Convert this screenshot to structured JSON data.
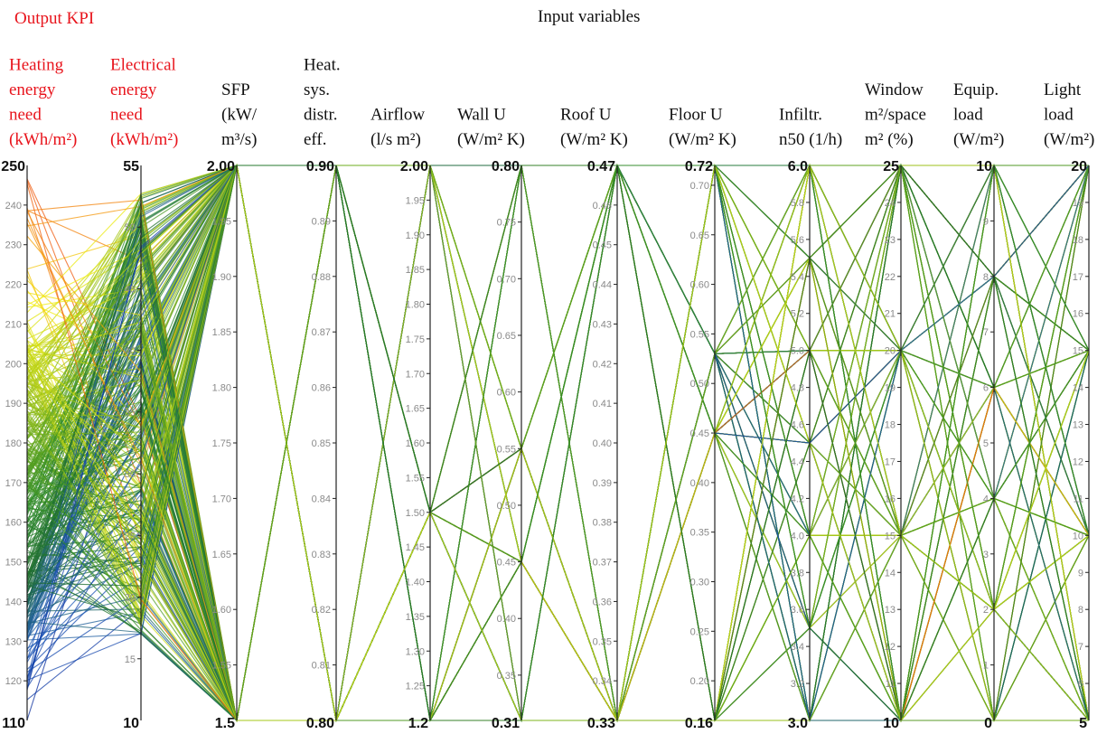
{
  "header": {
    "output_label": "Output KPI",
    "input_label": "Input variables"
  },
  "colors": {
    "output_text": "#e8141c",
    "input_text": "#111111",
    "axis": "#222222",
    "tick_text": "#8a8a8a",
    "bound_text": "#111111",
    "scale": [
      "#0b2f9e",
      "#1f5bb8",
      "#1f6e2e",
      "#2e8b2b",
      "#6aaa1c",
      "#b6cf18",
      "#f2ee10",
      "#f5a20a",
      "#ee4a10"
    ]
  },
  "chart_data": {
    "type": "parallel_coordinates",
    "color_by": "Heating energy need",
    "axes": [
      {
        "name": "Heating energy need (kWh/m²)",
        "lines": [
          "Heating",
          "energy",
          "need",
          "(kWh/m²)"
        ],
        "group": "output",
        "min": 110,
        "max": 250,
        "ticks": [
          "120",
          "130",
          "140",
          "150",
          "160",
          "170",
          "180",
          "190",
          "200",
          "210",
          "220",
          "230",
          "240"
        ],
        "bottom": "110",
        "top": "250"
      },
      {
        "name": "Electrical energy need (kWh/m²)",
        "lines": [
          "Electrical",
          "energy",
          "need",
          "(kWh/m²)"
        ],
        "group": "output",
        "min": 10,
        "max": 55,
        "ticks": [
          "15",
          "20",
          "25",
          "30",
          "35",
          "40",
          "45",
          "50"
        ],
        "bottom": "10",
        "top": "55"
      },
      {
        "name": "SFP (kW/m³/s)",
        "lines": [
          "SFP",
          "(kW/",
          "m³/s)"
        ],
        "group": "input",
        "min": 1.5,
        "max": 2.0,
        "ticks": [
          "1.55",
          "1.60",
          "1.65",
          "1.70",
          "1.75",
          "1.80",
          "1.85",
          "1.90",
          "1.95"
        ],
        "bottom": "1.5",
        "top": "2.00",
        "levels": [
          1.5,
          2.0
        ]
      },
      {
        "name": "Heat. sys. distr. eff.",
        "lines": [
          "Heat.",
          "sys.",
          "distr.",
          "eff."
        ],
        "group": "input",
        "min": 0.8,
        "max": 0.9,
        "ticks": [
          "0.81",
          "0.82",
          "0.83",
          "0.84",
          "0.85",
          "0.86",
          "0.87",
          "0.88",
          "0.89"
        ],
        "bottom": "0.80",
        "top": "0.90",
        "levels": [
          0.8,
          0.9
        ]
      },
      {
        "name": "Airflow (l/s m²)",
        "lines": [
          "Airflow",
          "(l/s m²)"
        ],
        "group": "input",
        "min": 1.2,
        "max": 2.0,
        "ticks": [
          "1.25",
          "1.30",
          "1.35",
          "1.40",
          "1.45",
          "1.50",
          "1.55",
          "1.60",
          "1.65",
          "1.70",
          "1.75",
          "1.80",
          "1.85",
          "1.90",
          "1.95"
        ],
        "bottom": "1.2",
        "top": "2.00",
        "levels": [
          1.2,
          1.5,
          2.0
        ]
      },
      {
        "name": "Wall U (W/m² K)",
        "lines": [
          "Wall U",
          "(W/m² K)"
        ],
        "group": "input",
        "min": 0.31,
        "max": 0.8,
        "ticks": [
          "0.35",
          "0.40",
          "0.45",
          "0.50",
          "0.55",
          "0.60",
          "0.65",
          "0.70",
          "0.75"
        ],
        "bottom": "0.31",
        "top": "0.80",
        "levels": [
          0.31,
          0.45,
          0.55,
          0.8
        ]
      },
      {
        "name": "Roof U (W/m² K)",
        "lines": [
          "Roof U",
          "(W/m² K)"
        ],
        "group": "input",
        "min": 0.33,
        "max": 0.47,
        "ticks": [
          "0.34",
          "0.35",
          "0.36",
          "0.37",
          "0.38",
          "0.39",
          "0.40",
          "0.41",
          "0.42",
          "0.43",
          "0.44",
          "0.45",
          "0.46"
        ],
        "bottom": "0.33",
        "top": "0.47",
        "levels": [
          0.33,
          0.47
        ]
      },
      {
        "name": "Floor U (W/m² K)",
        "lines": [
          "Floor U",
          "(W/m² K)"
        ],
        "group": "input",
        "min": 0.16,
        "max": 0.72,
        "ticks": [
          "0.20",
          "0.25",
          "0.30",
          "0.35",
          "0.40",
          "0.45",
          "0.50",
          "0.55",
          "0.60",
          "0.65",
          "0.70"
        ],
        "bottom": "0.16",
        "top": "0.72",
        "levels": [
          0.16,
          0.45,
          0.53,
          0.72
        ]
      },
      {
        "name": "Infiltr. n50 (1/h)",
        "lines": [
          "Infiltr.",
          "n50 (1/h)"
        ],
        "group": "input",
        "min": 3.0,
        "max": 6.0,
        "ticks": [
          "3.2",
          "3.4",
          "3.6",
          "3.8",
          "4.0",
          "4.2",
          "4.4",
          "4.6",
          "4.8",
          "5.0",
          "5.2",
          "5.4",
          "5.6",
          "5.8"
        ],
        "bottom": "3.0",
        "top": "6.0",
        "levels": [
          3.0,
          3.5,
          4.0,
          4.5,
          5.0,
          5.5,
          6.0
        ]
      },
      {
        "name": "Window m²/space m² (%)",
        "lines": [
          "Window",
          "m²/space",
          "m² (%)"
        ],
        "group": "input",
        "min": 10,
        "max": 25,
        "ticks": [
          "11",
          "12",
          "13",
          "14",
          "15",
          "16",
          "17",
          "18",
          "19",
          "20",
          "21",
          "22",
          "23",
          "24"
        ],
        "bottom": "10",
        "top": "25",
        "levels": [
          10,
          15,
          20,
          25
        ]
      },
      {
        "name": "Equip. load (W/m²)",
        "lines": [
          "Equip.",
          "load",
          "(W/m²)"
        ],
        "group": "input",
        "min": 0,
        "max": 10,
        "ticks": [
          "1",
          "2",
          "3",
          "4",
          "5",
          "6",
          "7",
          "8",
          "9"
        ],
        "bottom": "0",
        "top": "10",
        "levels": [
          0,
          2,
          4,
          6,
          8,
          10
        ]
      },
      {
        "name": "Light load (W/m²)",
        "lines": [
          "Light",
          "load",
          "(W/m²)"
        ],
        "group": "input",
        "min": 5,
        "max": 20,
        "ticks": [
          "6",
          "7",
          "8",
          "9",
          "10",
          "11",
          "12",
          "13",
          "14",
          "15",
          "16",
          "17",
          "18",
          "19"
        ],
        "bottom": "5",
        "top": "20",
        "levels": [
          5,
          10,
          15,
          20
        ]
      }
    ]
  }
}
